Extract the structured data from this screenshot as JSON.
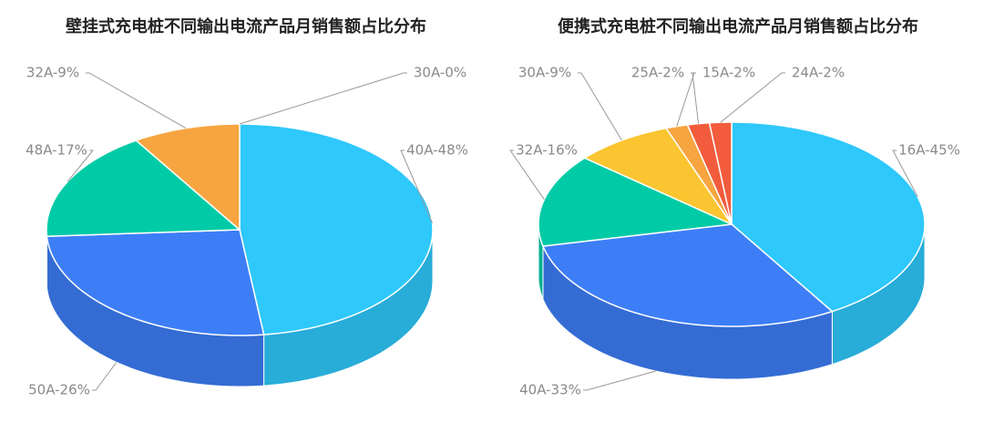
{
  "chart_data": [
    {
      "type": "pie",
      "title": "壁挂式充电桩不同输出电流产品月销售额占比分布",
      "values": [
        48,
        26,
        17,
        9,
        0
      ],
      "value_labels": [
        "40A-48%",
        "50A-26%",
        "48A-17%",
        "32A-9%",
        "30A-0%"
      ],
      "colors": [
        "#2ec8fb",
        "#3d7ef7",
        "#00cba6",
        "#f7a540",
        "#f25c3c"
      ]
    },
    {
      "type": "pie",
      "title": "便携式充电桩不同输出电流产品月销售额占比分布",
      "values": [
        45,
        33,
        16,
        9,
        2,
        2,
        2
      ],
      "value_labels": [
        "16A-45%",
        "40A-33%",
        "32A-16%",
        "30A-9%",
        "25A-2%",
        "15A-2%",
        "24A-2%"
      ],
      "colors": [
        "#2ec8fb",
        "#3d7ef7",
        "#00cba6",
        "#fbc531",
        "#f7a540",
        "#f25c3c",
        "#f25c3c"
      ]
    }
  ]
}
